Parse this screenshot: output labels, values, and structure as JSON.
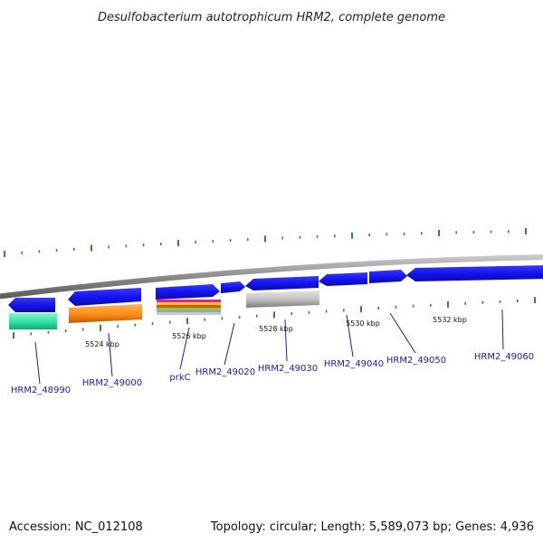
{
  "title": "Desulfobacterium autotrophicum HRM2, complete genome",
  "footer": {
    "accession": "Accession: NC_012108",
    "summary": "Topology: circular; Length: 5,589,073 bp; Genes: 4,936"
  },
  "colors": {
    "backbone": "#8a8a8a",
    "tick": "#2e8b2e",
    "gene_arrow": "#1a1aee",
    "label": "#1a1ab3"
  },
  "kbp_labels": [
    "5524 kbp",
    "5526 kbp",
    "5528 kbp",
    "5530 kbp",
    "5532 kbp"
  ],
  "genes": [
    {
      "id": "HRM2_48990",
      "label": "HRM2_48990",
      "strand": "-",
      "feature_color": "#33e8a8",
      "feature_type": "solid"
    },
    {
      "id": "HRM2_49000",
      "label": "HRM2_49000",
      "strand": "-",
      "feature_color": "#ff8c1a",
      "feature_type": "solid"
    },
    {
      "id": "prkC",
      "label": "prkC",
      "strand": "+",
      "feature_color": "multi",
      "feature_type": "striped",
      "stripe_colors": [
        "#e81f8c",
        "#f0d21e",
        "#e84a2a",
        "#7bd43a",
        "#9a9ad8",
        "#c9c9c9"
      ]
    },
    {
      "id": "HRM2_49020",
      "label": "HRM2_49020",
      "strand": "+",
      "feature_color": "none",
      "feature_type": "none"
    },
    {
      "id": "HRM2_49030",
      "label": "HRM2_49030",
      "strand": "-",
      "feature_color": "#bdbdbd",
      "feature_type": "solid"
    },
    {
      "id": "HRM2_49040",
      "label": "HRM2_49040",
      "strand": "-",
      "feature_color": "none",
      "feature_type": "none"
    },
    {
      "id": "HRM2_49050",
      "label": "HRM2_49050",
      "strand": "+",
      "feature_color": "none",
      "feature_type": "none"
    },
    {
      "id": "HRM2_49060",
      "label": "HRM2_49060",
      "strand": "-",
      "feature_color": "none",
      "feature_type": "none"
    }
  ]
}
